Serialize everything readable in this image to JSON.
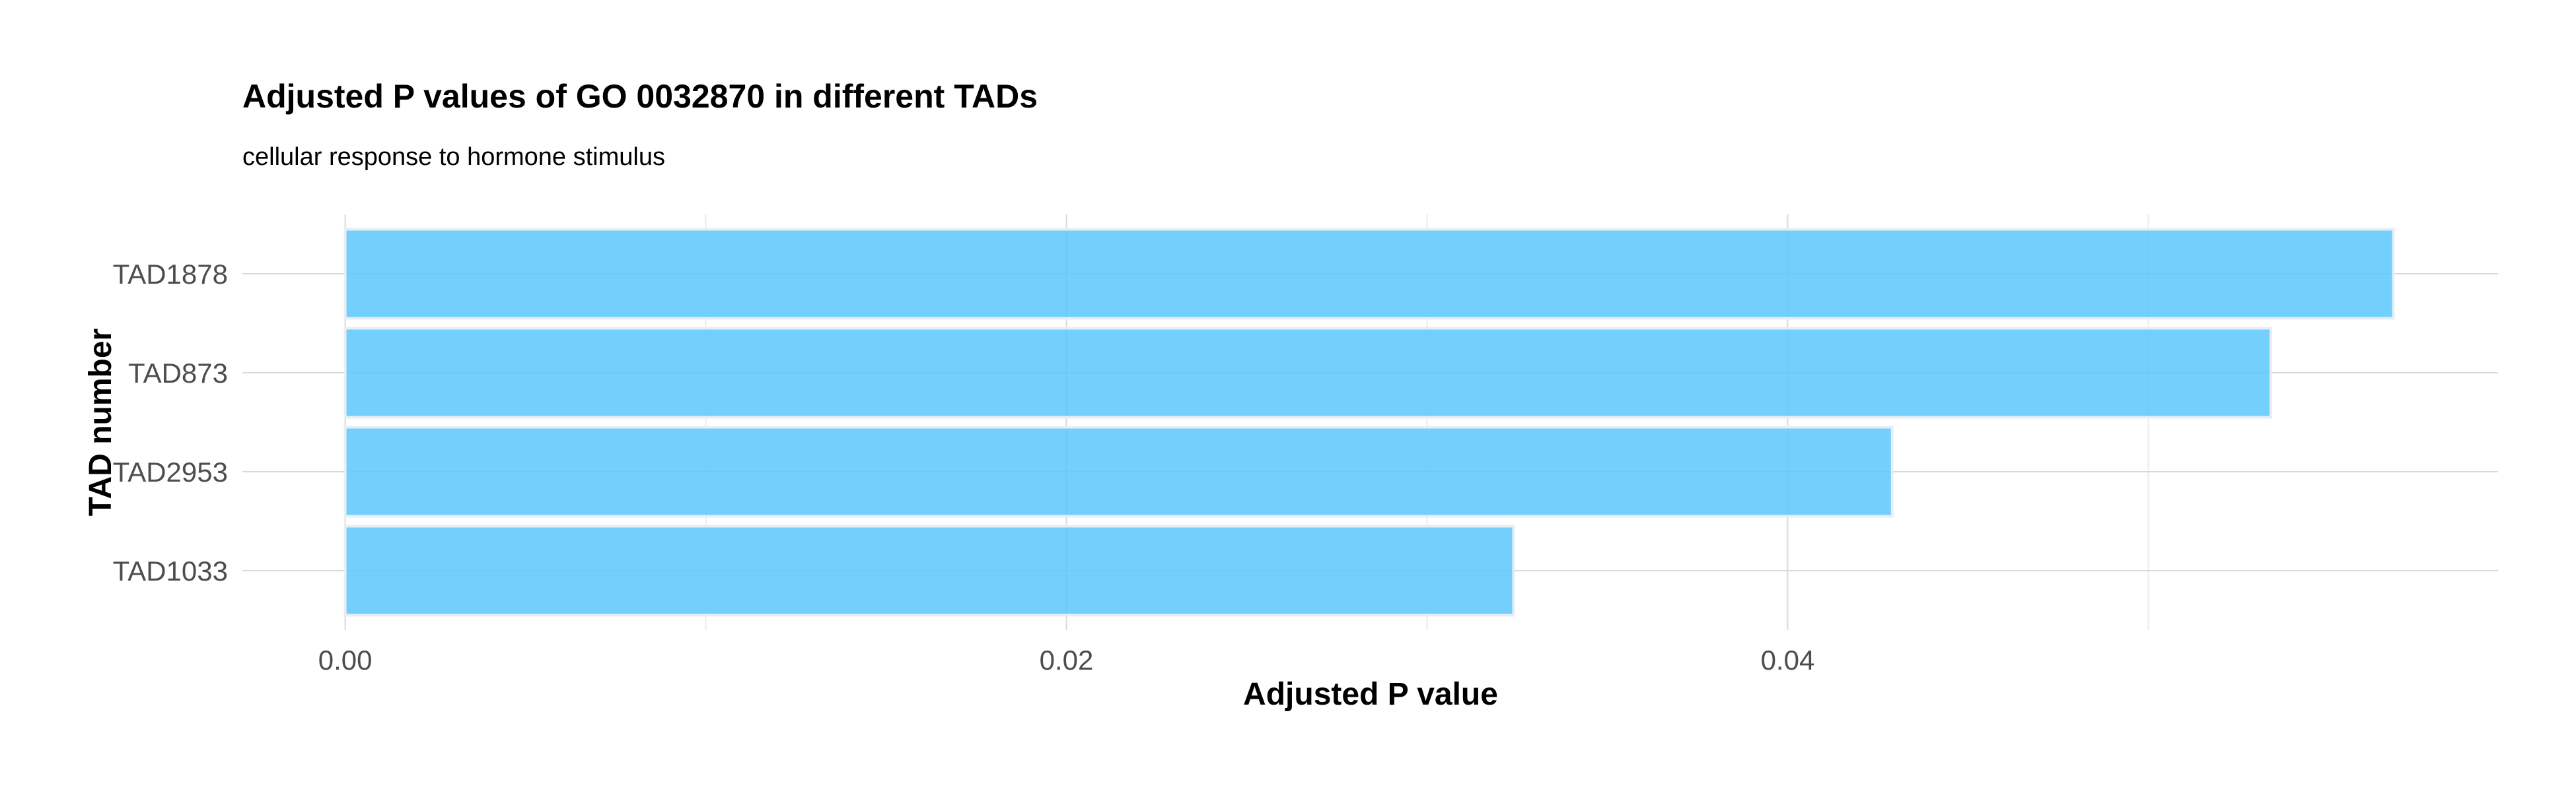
{
  "chart_data": {
    "type": "bar",
    "orientation": "horizontal",
    "title": "Adjusted P values of GO 0032870 in different TADs",
    "subtitle": "cellular response to hormone stimulus",
    "xlabel": "Adjusted P value",
    "ylabel": "TAD number",
    "categories": [
      "TAD1878",
      "TAD873",
      "TAD2953",
      "TAD1033"
    ],
    "values": [
      0.0568,
      0.0534,
      0.0429,
      0.0324
    ],
    "xlim": [
      -0.00285,
      0.0597
    ],
    "xticks": [
      0.0,
      0.02,
      0.04
    ],
    "xtick_labels": [
      "0.00",
      "0.02",
      "0.04"
    ],
    "grid": true,
    "legend": "none",
    "bar_color": "#5BC8FD",
    "bar_outline_color": "#E8EEF3"
  }
}
